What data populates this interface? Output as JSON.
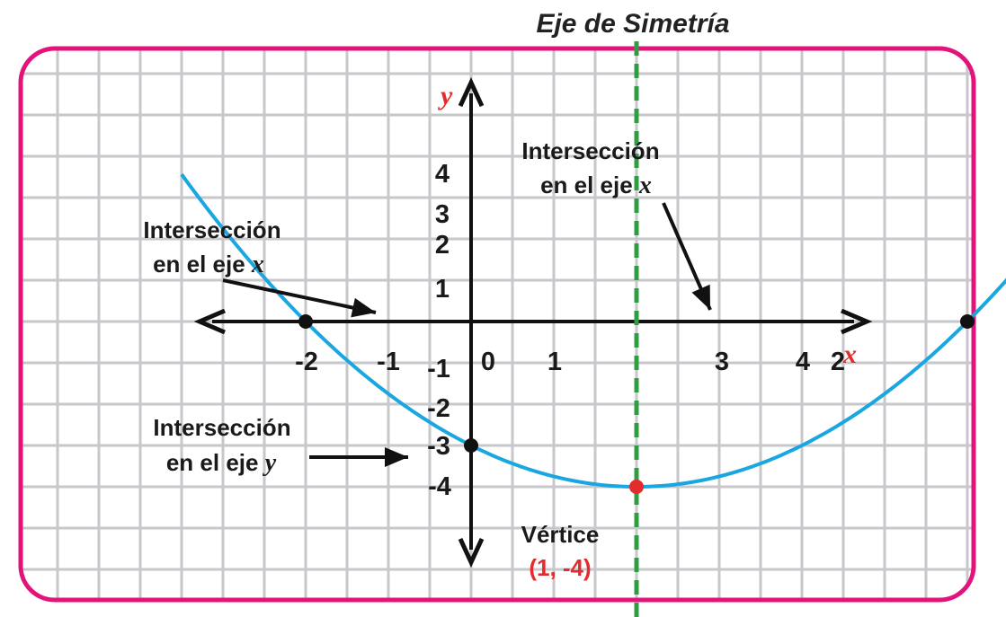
{
  "colors": {
    "frame": "#e2137a",
    "grid": "#c7c7cc",
    "axis": "#111111",
    "curve": "#1aa7e0",
    "symmetry": "#2f9e3f",
    "accent": "#e52b2b",
    "point": "#111111"
  },
  "chart_data": {
    "type": "line",
    "title": "Eje de Simetría",
    "xlabel": "x",
    "ylabel": "y",
    "x_ticks": [
      "-2",
      "-1",
      "0",
      "1",
      "3",
      "4",
      "2"
    ],
    "y_ticks": [
      "4",
      "3",
      "2",
      "1",
      "-1",
      "-2",
      "-3",
      "-4"
    ],
    "xlim": [
      -3.3,
      3.8
    ],
    "ylim": [
      -4.7,
      4
    ],
    "grid": true,
    "series": [
      {
        "function": "y = (x - 1)^2 - 4",
        "x_range": [
          -1.75,
          3.75
        ]
      }
    ],
    "points": [
      {
        "x": -1,
        "y": 0
      },
      {
        "x": 3,
        "y": 0
      },
      {
        "x": 0,
        "y": -3
      },
      {
        "x": 1,
        "y": -4
      }
    ],
    "symmetry_axis": {
      "x": 1
    },
    "annotations": [
      {
        "line1": "Intersección",
        "line2": "en el eje",
        "var": "x"
      },
      {
        "line1": "Intersección",
        "line2": "en el eje",
        "var": "x"
      },
      {
        "line1": "Intersección",
        "line2": "en el eje",
        "var": "y"
      },
      {
        "line1": "Vértice",
        "line2": "(1, -4)"
      }
    ]
  }
}
